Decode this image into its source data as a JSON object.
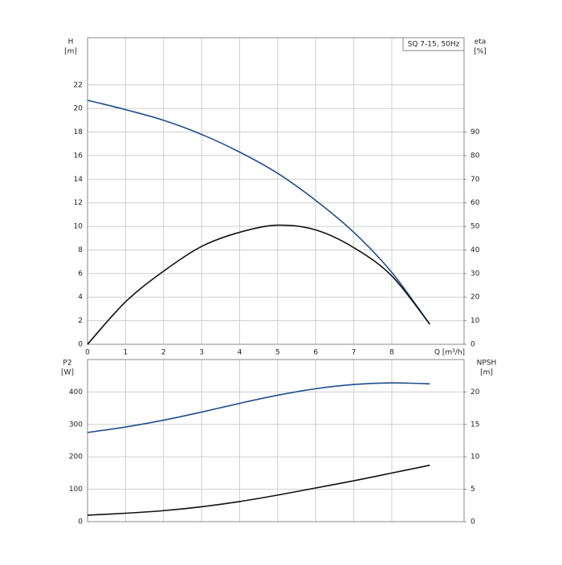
{
  "chart_data": [
    {
      "type": "line",
      "legend_title": "SQ 7-15, 50Hz",
      "ylabel": "H",
      "yunit": "[m]",
      "y2label": "eta",
      "y2unit": "[%]",
      "xlabel": "Q [m³/h]",
      "x": [
        0,
        1,
        2,
        3,
        4,
        5,
        6,
        7,
        8,
        9
      ],
      "xlim": [
        0,
        9.9
      ],
      "xticks": [
        0,
        1,
        2,
        3,
        4,
        5,
        6,
        7,
        8
      ],
      "ylim": [
        0,
        26
      ],
      "yticks": [
        0,
        2,
        4,
        6,
        8,
        10,
        12,
        14,
        16,
        18,
        20,
        22
      ],
      "y2lim": [
        0,
        130
      ],
      "y2ticks": [
        0,
        10,
        20,
        30,
        40,
        50,
        60,
        70,
        80,
        90
      ],
      "grid": true,
      "series": [
        {
          "name": "H",
          "color": "#1f4e8c",
          "values": [
            20.7,
            19.9,
            19.0,
            17.8,
            16.3,
            14.5,
            12.2,
            9.5,
            6.1,
            1.7
          ]
        },
        {
          "name": "eta",
          "color": "#111111",
          "axis": "y2",
          "values": [
            0,
            18,
            31,
            41.5,
            47.5,
            50.5,
            48.5,
            41,
            29,
            8.5
          ]
        }
      ]
    },
    {
      "type": "line",
      "ylabel": "P2",
      "yunit": "[W]",
      "y2label": "NPSH",
      "y2unit": "[m]",
      "x": [
        0,
        1,
        2,
        3,
        4,
        5,
        6,
        7,
        8,
        9
      ],
      "xlim": [
        0,
        9.9
      ],
      "ylim": [
        0,
        500
      ],
      "yticks": [
        0,
        100,
        200,
        300,
        400
      ],
      "y2lim": [
        0,
        25
      ],
      "y2ticks": [
        0,
        5,
        10,
        15,
        20
      ],
      "grid": true,
      "series": [
        {
          "name": "P2",
          "color": "#1f4e8c",
          "values": [
            275,
            292,
            313,
            338,
            365,
            390,
            410,
            423,
            428,
            425
          ]
        },
        {
          "name": "NPSH",
          "color": "#111111",
          "axis": "y2",
          "values": [
            1.0,
            1.3,
            1.7,
            2.3,
            3.1,
            4.1,
            5.2,
            6.3,
            7.5,
            8.7
          ]
        }
      ]
    }
  ]
}
